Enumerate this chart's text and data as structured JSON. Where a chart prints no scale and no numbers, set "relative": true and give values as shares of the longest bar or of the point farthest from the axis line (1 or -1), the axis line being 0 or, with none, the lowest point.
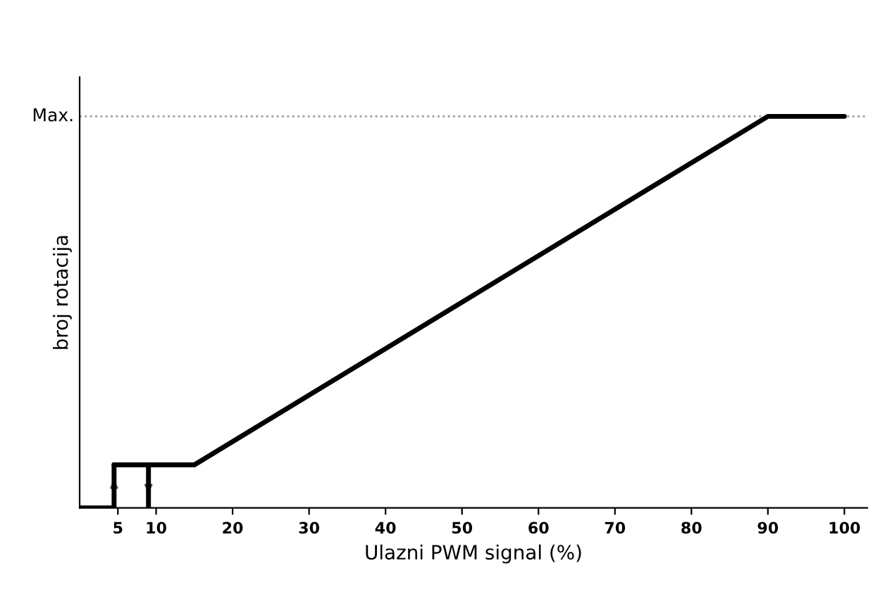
{
  "chart_data": {
    "type": "line",
    "relative": true,
    "xlabel": "Ulazni PWM signal (%)",
    "ylabel": "broj rotacija",
    "xlim": [
      0,
      103
    ],
    "xticks": [
      5,
      10,
      20,
      30,
      40,
      50,
      60,
      70,
      80,
      90,
      100
    ],
    "series": [
      {
        "color": "#000000",
        "x": [
          0,
          4.5,
          4.5,
          15,
          90,
          100
        ],
        "values": [
          0,
          0,
          0.11,
          0.11,
          1,
          1
        ]
      },
      {
        "color": "#000000",
        "x": [
          4.5,
          9,
          9
        ],
        "values": [
          0.11,
          0.11,
          0
        ]
      }
    ],
    "ref_lines": [
      {
        "axis": "y",
        "value": 1,
        "label": "Max.",
        "color": "#999999",
        "line_style": "dotted"
      }
    ],
    "marker": "none",
    "line_style": "solid",
    "grid": false,
    "legend": false
  }
}
